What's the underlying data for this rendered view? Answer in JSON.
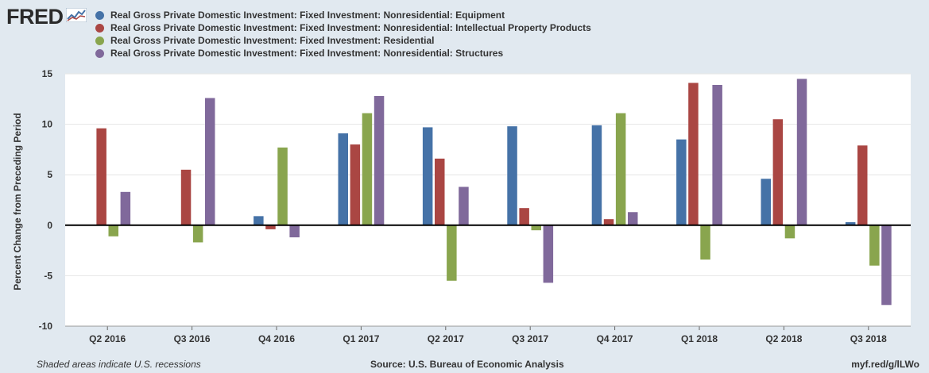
{
  "logo": {
    "text": "FRED",
    "icon": "fred-chart-icon"
  },
  "footer": {
    "recessions_note": "Shaded areas indicate U.S. recessions",
    "source": "Source: U.S. Bureau of Economic Analysis",
    "url": "myf.red/g/lLWo"
  },
  "colors": {
    "background": "#e1e9f0",
    "plot_background": "#ffffff",
    "grid": "#e6e6e6",
    "zero_line": "#000000"
  },
  "chart_data": {
    "type": "bar",
    "title": "",
    "xlabel": "",
    "ylabel": "Percent Change from Preceding Period",
    "ylim": [
      -10,
      15
    ],
    "yticks": [
      -10,
      -5,
      0,
      5,
      10,
      15
    ],
    "grid": true,
    "legend_position": "top-left",
    "categories": [
      "Q2 2016",
      "Q3 2016",
      "Q4 2016",
      "Q1 2017",
      "Q2 2017",
      "Q3 2017",
      "Q4 2017",
      "Q1 2018",
      "Q2 2018",
      "Q3 2018"
    ],
    "series": [
      {
        "name": "Real Gross Private Domestic Investment: Fixed Investment: Nonresidential: Equipment",
        "color": "#4572a7",
        "values": [
          0.0,
          0.0,
          0.9,
          9.1,
          9.7,
          9.8,
          9.9,
          8.5,
          4.6,
          0.3
        ]
      },
      {
        "name": "Real Gross Private Domestic Investment: Fixed Investment: Nonresidential: Intellectual Property Products",
        "color": "#aa4643",
        "values": [
          9.6,
          5.5,
          -0.4,
          8.0,
          6.6,
          1.7,
          0.6,
          14.1,
          10.5,
          7.9
        ]
      },
      {
        "name": "Real Gross Private Domestic Investment: Fixed Investment: Residential",
        "color": "#89a54e",
        "values": [
          -1.1,
          -1.7,
          7.7,
          11.1,
          -5.5,
          -0.5,
          11.1,
          -3.4,
          -1.3,
          -4.0
        ]
      },
      {
        "name": "Real Gross Private Domestic Investment: Fixed Investment: Nonresidential: Structures",
        "color": "#80699b",
        "values": [
          3.3,
          12.6,
          -1.2,
          12.8,
          3.8,
          -5.7,
          1.3,
          13.9,
          14.5,
          -7.9
        ]
      }
    ]
  }
}
